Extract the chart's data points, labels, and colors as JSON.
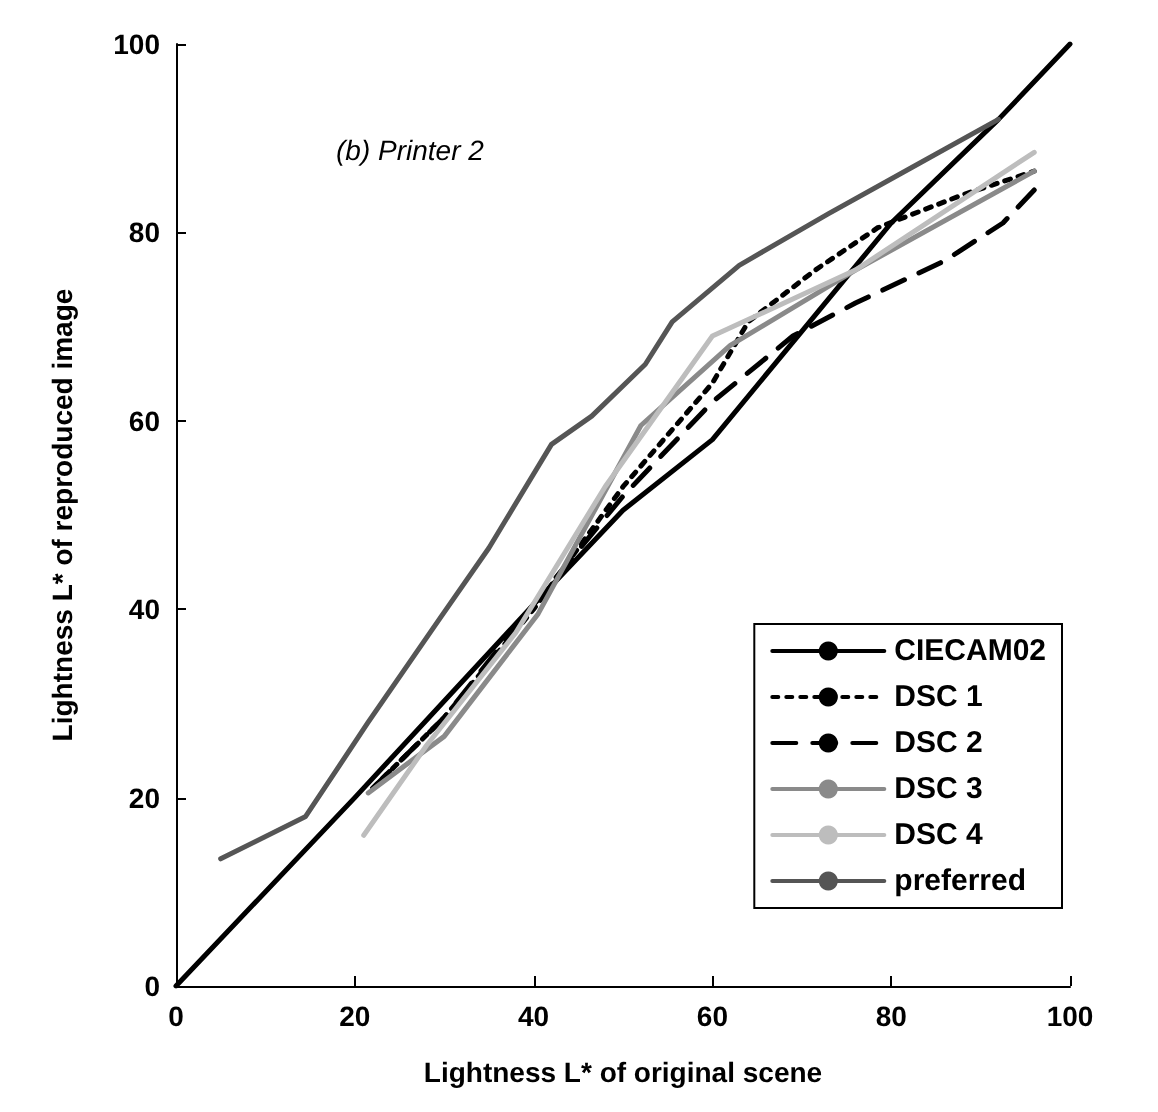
{
  "chart_data": {
    "type": "line",
    "xlabel": "Lightness L* of original scene",
    "ylabel": "Lightness L* of reproduced image",
    "annotations": [
      "(b) Printer 2"
    ],
    "xlim": [
      0,
      100
    ],
    "ylim": [
      0,
      100
    ],
    "xticks": [
      0,
      20,
      40,
      60,
      80,
      100
    ],
    "yticks": [
      0,
      20,
      40,
      60,
      80,
      100
    ],
    "grid": false,
    "legend": "bottom right",
    "marker": "none",
    "series": [
      {
        "name": "CIECAM02",
        "color": "#000000",
        "line_style": "solid",
        "x": [
          0,
          20,
          40,
          50,
          60,
          70,
          80,
          92,
          100
        ],
        "values": [
          0,
          20,
          40.5,
          50.5,
          58,
          69.5,
          81,
          92,
          100
        ]
      },
      {
        "name": "DSC 1",
        "color": "#000000",
        "line_style": "dotted",
        "x": [
          22,
          30,
          40,
          50,
          60,
          64,
          71.5,
          78.5,
          88,
          96
        ],
        "values": [
          21,
          28.5,
          40,
          53,
          64,
          70.5,
          76,
          80.5,
          84,
          86.5
        ]
      },
      {
        "name": "DSC 2",
        "color": "#000000",
        "line_style": "dashed",
        "x": [
          22,
          30,
          40,
          50,
          60,
          69,
          76,
          86,
          92.5,
          96
        ],
        "values": [
          21,
          28.5,
          40.5,
          52,
          62,
          69,
          72.5,
          77,
          81,
          84.5
        ]
      },
      {
        "name": "DSC 3",
        "color": "#8a8a8a",
        "line_style": "solid",
        "x": [
          21.5,
          30,
          40.5,
          52,
          62,
          76,
          96
        ],
        "values": [
          20.5,
          26.5,
          39.5,
          59.5,
          68,
          76,
          86.5
        ]
      },
      {
        "name": "DSC 4",
        "color": "#bdbdbd",
        "line_style": "solid",
        "x": [
          21,
          28,
          38,
          48,
          60,
          76,
          96
        ],
        "values": [
          16,
          25.5,
          37.5,
          53,
          69,
          76,
          88.5
        ]
      },
      {
        "name": "preferred",
        "color": "#555555",
        "line_style": "solid",
        "x": [
          5,
          14.5,
          21.5,
          29.5,
          35,
          42,
          46.5,
          52.5,
          55.5,
          63,
          73,
          82.5,
          92
        ],
        "values": [
          13.5,
          18,
          28,
          39,
          46.5,
          57.5,
          60.5,
          66,
          70.5,
          76.5,
          82,
          87,
          92
        ]
      }
    ]
  }
}
